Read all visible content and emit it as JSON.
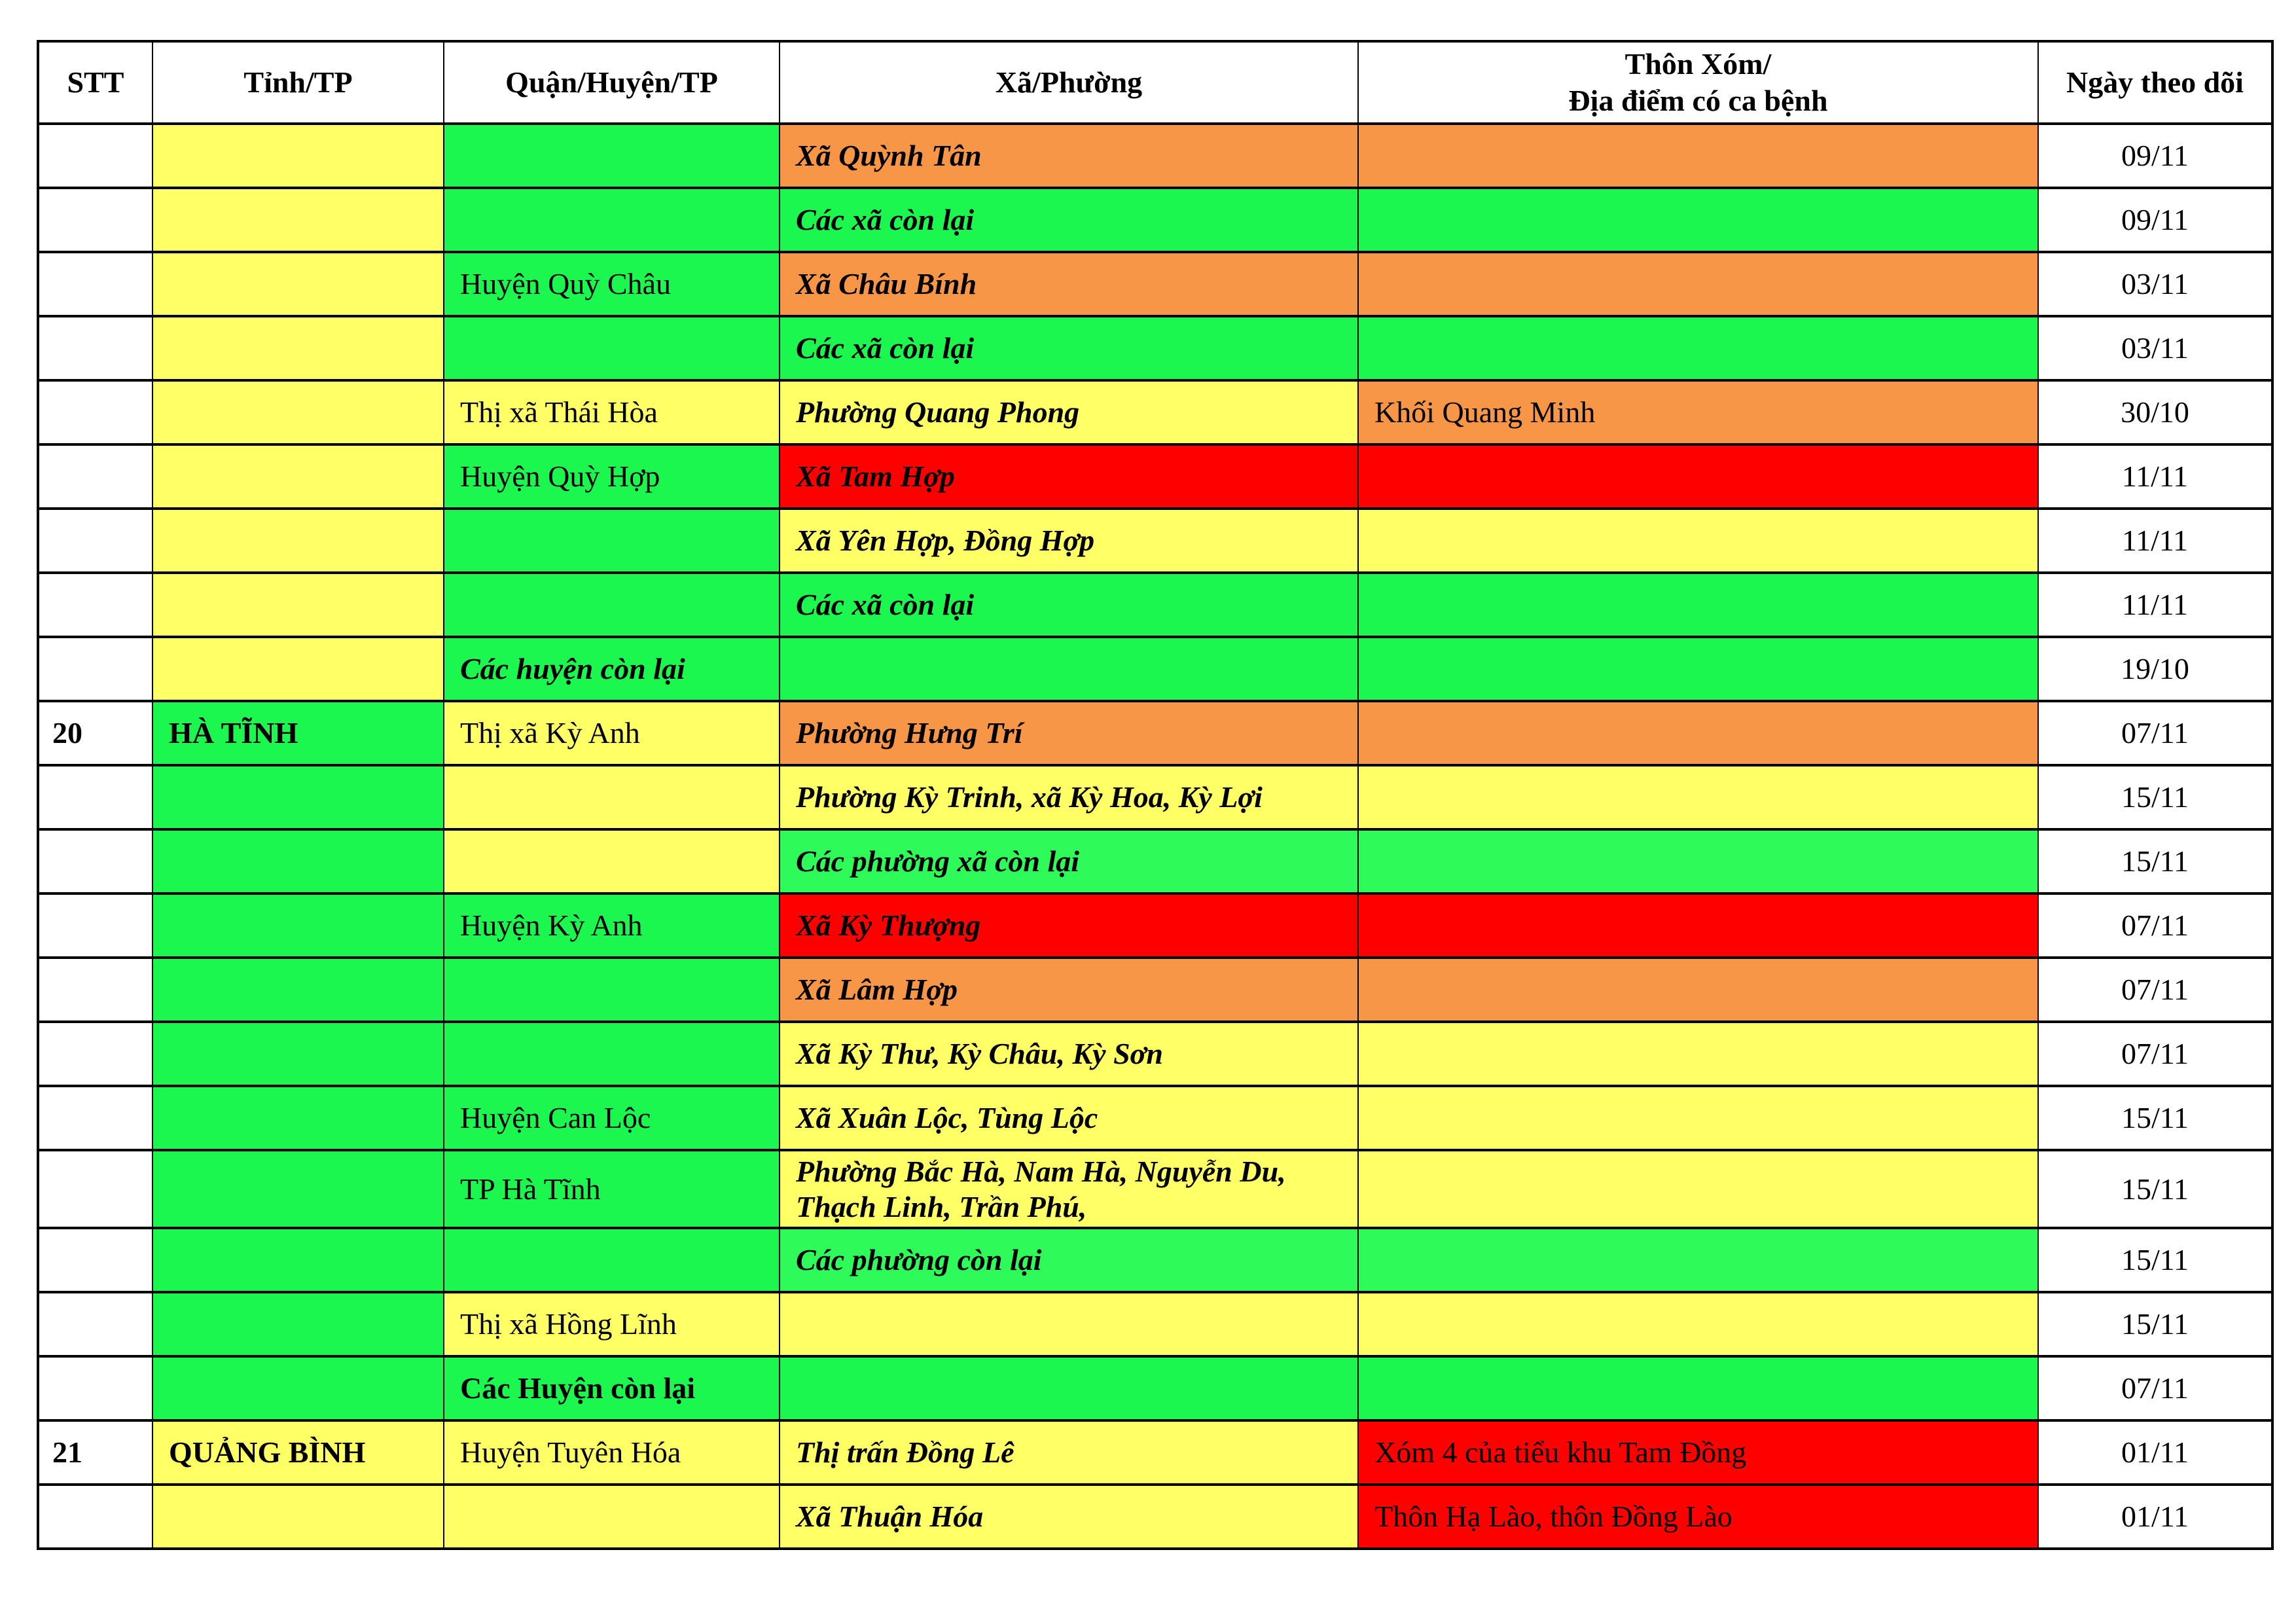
{
  "colors": {
    "Y": "#FFFF66",
    "G": "#1CF74F",
    "G2": "#2EFA5A",
    "O": "#F79646",
    "R": "#FF0000",
    "W": "#FFFFFF"
  },
  "headers": [
    "STT",
    "Tỉnh/TP",
    "Quận/Huyện/TP",
    "Xã/Phường",
    "Thôn Xóm/",
    "Địa điểm có ca bệnh",
    "Ngày theo dõi"
  ],
  "rows": [
    {
      "stt": "",
      "tinh": "",
      "quan": "",
      "xa": [
        "Xã Quỳnh Tân"
      ],
      "thon": "",
      "date": "09/11",
      "c": [
        "Y",
        "G",
        "O",
        "O"
      ]
    },
    {
      "stt": "",
      "tinh": "",
      "quan": "",
      "xa": [
        "Các xã còn lại"
      ],
      "thon": "",
      "date": "09/11",
      "c": [
        "Y",
        "G",
        "G",
        "G"
      ]
    },
    {
      "stt": "",
      "tinh": "",
      "quan": "Huyện Quỳ Châu",
      "xa": [
        "Xã Châu Bính"
      ],
      "thon": "",
      "date": "03/11",
      "c": [
        "Y",
        "G",
        "O",
        "O"
      ]
    },
    {
      "stt": "",
      "tinh": "",
      "quan": "",
      "xa": [
        "Các xã còn lại"
      ],
      "thon": "",
      "date": "03/11",
      "c": [
        "Y",
        "G",
        "G",
        "G"
      ]
    },
    {
      "stt": "",
      "tinh": "",
      "quan": "Thị xã Thái Hòa",
      "xa": [
        "Phường Quang Phong"
      ],
      "thon": "Khối Quang Minh",
      "date": "30/10",
      "c": [
        "Y",
        "Y",
        "Y",
        "O"
      ]
    },
    {
      "stt": "",
      "tinh": "",
      "quan": "Huyện Quỳ Hợp",
      "xa": [
        "Xã Tam Hợp"
      ],
      "thon": "",
      "date": "11/11",
      "c": [
        "Y",
        "G",
        "R",
        "R"
      ]
    },
    {
      "stt": "",
      "tinh": "",
      "quan": "",
      "xa": [
        "Xã Yên Hợp, Đồng Hợp"
      ],
      "thon": "",
      "date": "11/11",
      "c": [
        "Y",
        "G",
        "Y",
        "Y"
      ]
    },
    {
      "stt": "",
      "tinh": "",
      "quan": "",
      "xa": [
        "Các xã còn lại"
      ],
      "thon": "",
      "date": "11/11",
      "c": [
        "Y",
        "G",
        "G",
        "G"
      ]
    },
    {
      "stt": "",
      "tinh": "",
      "quan": "Các huyện còn lại",
      "quan_emphasis": "bold-italic",
      "xa": [
        ""
      ],
      "thon": "",
      "date": "19/10",
      "c": [
        "Y",
        "G",
        "G",
        "G"
      ]
    },
    {
      "stt": "20",
      "tinh": "HÀ TĨNH",
      "quan": "Thị xã Kỳ Anh",
      "xa": [
        "Phường Hưng Trí"
      ],
      "thon": "",
      "date": "07/11",
      "c": [
        "G",
        "Y",
        "O",
        "O"
      ]
    },
    {
      "stt": "",
      "tinh": "",
      "quan": "",
      "xa": [
        "Phường Kỳ Trinh, xã Kỳ Hoa, Kỳ Lợi"
      ],
      "thon": "",
      "date": "15/11",
      "c": [
        "G",
        "Y",
        "Y",
        "Y"
      ]
    },
    {
      "stt": "",
      "tinh": "",
      "quan": "",
      "xa": [
        "Các phường xã còn lại"
      ],
      "thon": "",
      "date": "15/11",
      "c": [
        "G",
        "Y",
        "G2",
        "G2"
      ]
    },
    {
      "stt": "",
      "tinh": "",
      "quan": "Huyện Kỳ Anh",
      "xa": [
        "Xã Kỳ Thượng"
      ],
      "thon": "",
      "date": "07/11",
      "c": [
        "G",
        "G",
        "R",
        "R"
      ]
    },
    {
      "stt": "",
      "tinh": "",
      "quan": "",
      "xa": [
        "Xã Lâm Hợp"
      ],
      "thon": "",
      "date": "07/11",
      "c": [
        "G",
        "G",
        "O",
        "O"
      ]
    },
    {
      "stt": "",
      "tinh": "",
      "quan": "",
      "xa": [
        "Xã Kỳ Thư, Kỳ Châu, Kỳ Sơn"
      ],
      "thon": "",
      "date": "07/11",
      "c": [
        "G",
        "G",
        "Y",
        "Y"
      ]
    },
    {
      "stt": "",
      "tinh": "",
      "quan": "Huyện Can Lộc",
      "xa": [
        "Xã Xuân Lộc, Tùng Lộc"
      ],
      "thon": "",
      "date": "15/11",
      "c": [
        "G",
        "G",
        "Y",
        "Y"
      ]
    },
    {
      "stt": "",
      "tinh": "",
      "quan": "TP Hà Tĩnh",
      "xa": [
        "Phường Bắc Hà, Nam Hà, Nguyễn Du,",
        "Thạch Linh, Trần Phú,"
      ],
      "thon": "",
      "date": "15/11",
      "c": [
        "G",
        "G",
        "Y",
        "Y"
      ]
    },
    {
      "stt": "",
      "tinh": "",
      "quan": "",
      "xa": [
        "Các phường còn lại"
      ],
      "thon": "",
      "date": "15/11",
      "c": [
        "G",
        "G",
        "G2",
        "G2"
      ]
    },
    {
      "stt": "",
      "tinh": "",
      "quan": "Thị xã Hồng Lĩnh",
      "xa": [
        ""
      ],
      "thon": "",
      "date": "15/11",
      "c": [
        "G",
        "Y",
        "Y",
        "Y"
      ]
    },
    {
      "stt": "",
      "tinh": "",
      "quan": "Các Huyện còn lại",
      "quan_emphasis": "bold",
      "xa": [
        ""
      ],
      "thon": "",
      "date": "07/11",
      "c": [
        "G",
        "G",
        "G",
        "G"
      ]
    },
    {
      "stt": "21",
      "tinh": "QUẢNG BÌNH",
      "quan": "Huyện Tuyên Hóa",
      "xa": [
        "Thị trấn Đồng Lê"
      ],
      "thon": "Xóm 4 của tiểu khu Tam Đồng",
      "date": "01/11",
      "c": [
        "Y",
        "Y",
        "Y",
        "R"
      ]
    },
    {
      "stt": "",
      "tinh": "",
      "quan": "",
      "xa": [
        "Xã Thuận Hóa"
      ],
      "thon": "Thôn Hạ Lào, thôn Đồng Lào",
      "date": "01/11",
      "c": [
        "Y",
        "Y",
        "Y",
        "R"
      ]
    }
  ]
}
